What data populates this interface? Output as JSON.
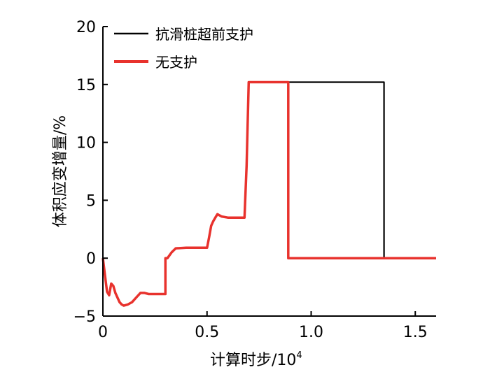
{
  "chart_data": {
    "type": "line",
    "xlabel": "计算时步/10",
    "xlabel_sup": "4",
    "ylabel": "体积应变增量/%",
    "xlim": [
      0,
      1.6
    ],
    "ylim": [
      -5,
      20
    ],
    "x_ticks": [
      "0",
      "0.5",
      "1.0",
      "1.5"
    ],
    "y_ticks": [
      "−5",
      "0",
      "5",
      "10",
      "15",
      "20"
    ],
    "x_tick_values": [
      0,
      0.5,
      1.0,
      1.5
    ],
    "y_tick_values": [
      -5,
      0,
      5,
      10,
      15,
      20
    ],
    "grid": false,
    "legend": "top-left",
    "series": [
      {
        "name": "抗滑桩超前支护",
        "color": "#000000",
        "points": [
          [
            0,
            0
          ],
          [
            0.01,
            -1.5
          ],
          [
            0.02,
            -2.9
          ],
          [
            0.03,
            -3.2
          ],
          [
            0.04,
            -2.2
          ],
          [
            0.05,
            -2.4
          ],
          [
            0.06,
            -3.0
          ],
          [
            0.07,
            -3.4
          ],
          [
            0.08,
            -3.8
          ],
          [
            0.09,
            -4.0
          ],
          [
            0.1,
            -4.1
          ],
          [
            0.12,
            -4.0
          ],
          [
            0.14,
            -3.8
          ],
          [
            0.16,
            -3.4
          ],
          [
            0.18,
            -3.0
          ],
          [
            0.2,
            -3.0
          ],
          [
            0.22,
            -3.1
          ],
          [
            0.25,
            -3.1
          ],
          [
            0.3,
            -3.1
          ],
          [
            0.3,
            0
          ],
          [
            0.31,
            0
          ],
          [
            0.33,
            0.5
          ],
          [
            0.35,
            0.85
          ],
          [
            0.4,
            0.9
          ],
          [
            0.45,
            0.9
          ],
          [
            0.5,
            0.9
          ],
          [
            0.51,
            1.8
          ],
          [
            0.52,
            2.8
          ],
          [
            0.53,
            3.2
          ],
          [
            0.54,
            3.5
          ],
          [
            0.55,
            3.8
          ],
          [
            0.57,
            3.6
          ],
          [
            0.6,
            3.5
          ],
          [
            0.65,
            3.5
          ],
          [
            0.68,
            3.5
          ],
          [
            0.69,
            8.0
          ],
          [
            0.7,
            15.2
          ],
          [
            0.75,
            15.2
          ],
          [
            0.8,
            15.2
          ],
          [
            0.89,
            15.2
          ],
          [
            1.0,
            15.2
          ],
          [
            1.2,
            15.2
          ],
          [
            1.35,
            15.2
          ],
          [
            1.35,
            0
          ],
          [
            1.45,
            0
          ],
          [
            1.6,
            0
          ]
        ]
      },
      {
        "name": "无支护",
        "color": "#e8322d",
        "points": [
          [
            0,
            0
          ],
          [
            0.01,
            -1.5
          ],
          [
            0.02,
            -2.9
          ],
          [
            0.03,
            -3.2
          ],
          [
            0.04,
            -2.2
          ],
          [
            0.05,
            -2.4
          ],
          [
            0.06,
            -3.0
          ],
          [
            0.07,
            -3.4
          ],
          [
            0.08,
            -3.8
          ],
          [
            0.09,
            -4.0
          ],
          [
            0.1,
            -4.1
          ],
          [
            0.12,
            -4.0
          ],
          [
            0.14,
            -3.8
          ],
          [
            0.16,
            -3.4
          ],
          [
            0.18,
            -3.0
          ],
          [
            0.2,
            -3.0
          ],
          [
            0.22,
            -3.1
          ],
          [
            0.25,
            -3.1
          ],
          [
            0.3,
            -3.1
          ],
          [
            0.3,
            0
          ],
          [
            0.31,
            0
          ],
          [
            0.33,
            0.5
          ],
          [
            0.35,
            0.85
          ],
          [
            0.4,
            0.9
          ],
          [
            0.45,
            0.9
          ],
          [
            0.5,
            0.9
          ],
          [
            0.51,
            1.8
          ],
          [
            0.52,
            2.8
          ],
          [
            0.53,
            3.2
          ],
          [
            0.54,
            3.5
          ],
          [
            0.55,
            3.8
          ],
          [
            0.57,
            3.6
          ],
          [
            0.6,
            3.5
          ],
          [
            0.65,
            3.5
          ],
          [
            0.68,
            3.5
          ],
          [
            0.69,
            8.0
          ],
          [
            0.7,
            15.2
          ],
          [
            0.75,
            15.2
          ],
          [
            0.8,
            15.2
          ],
          [
            0.89,
            15.2
          ],
          [
            0.89,
            0
          ],
          [
            1.0,
            0
          ],
          [
            1.2,
            0
          ],
          [
            1.4,
            0
          ],
          [
            1.6,
            0
          ]
        ]
      }
    ]
  }
}
